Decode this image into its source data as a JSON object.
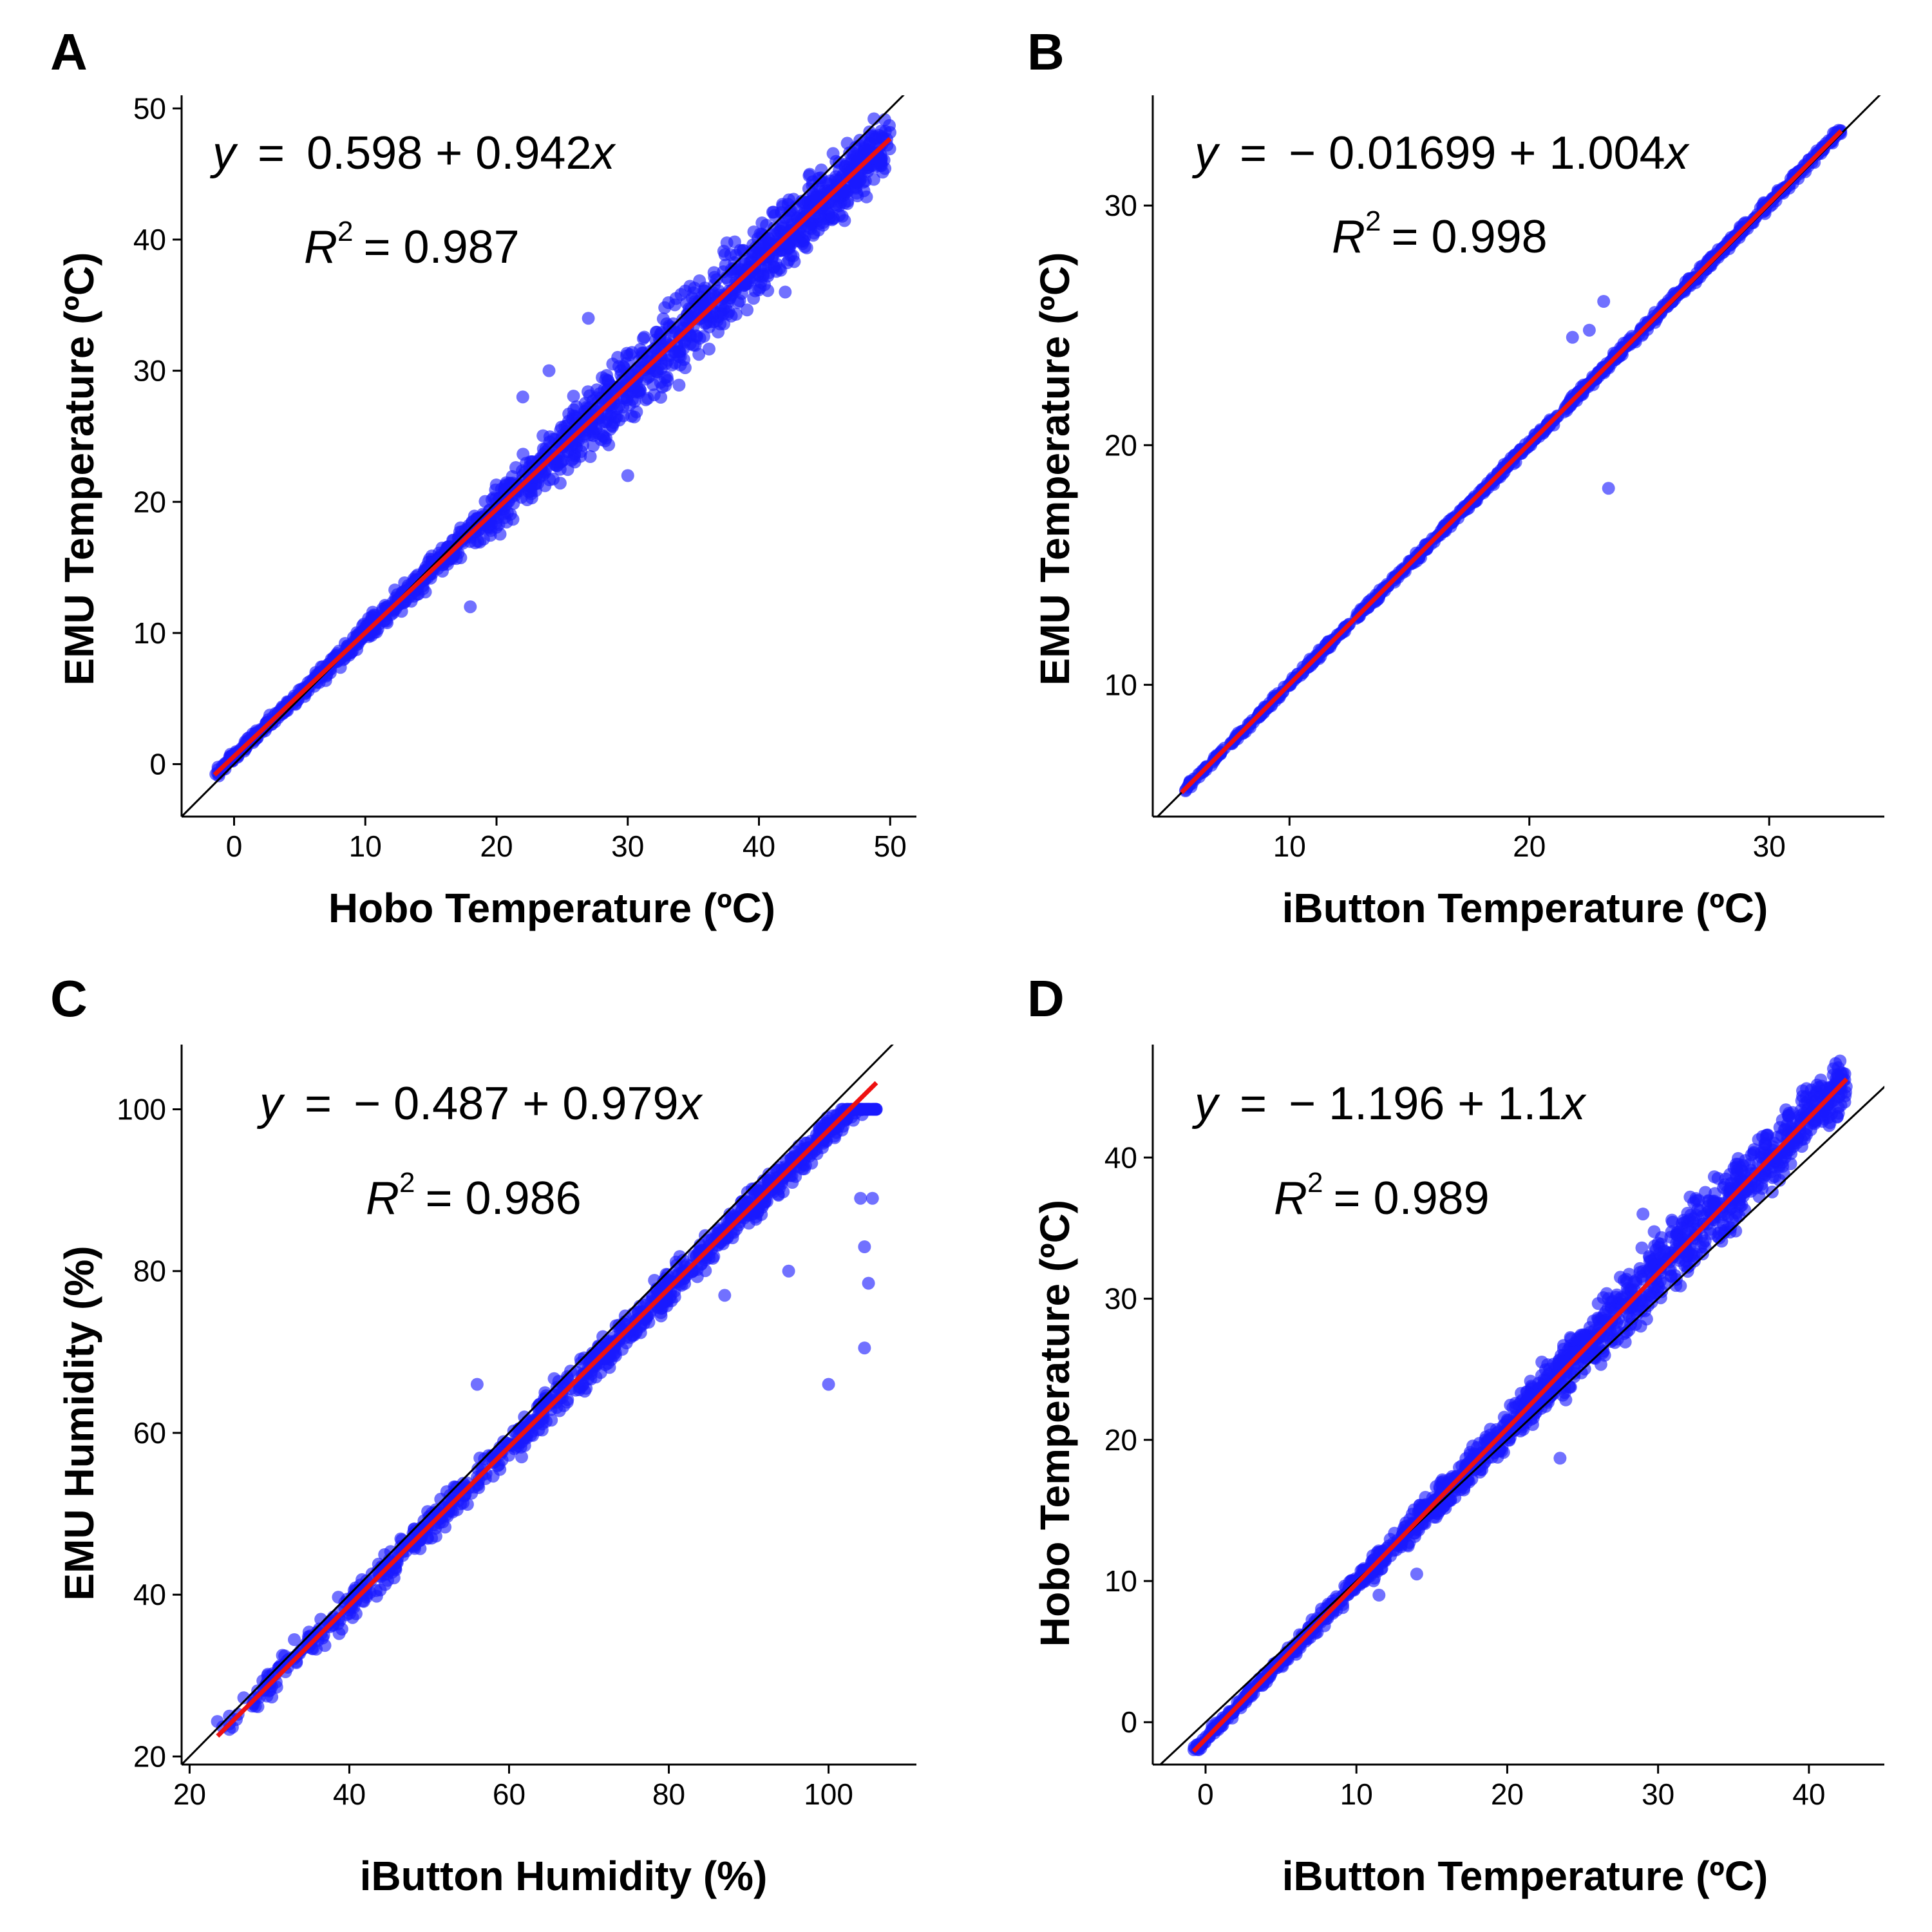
{
  "colors": {
    "points": "#1a1aff",
    "fit": "#ee1111",
    "identity": "#000000"
  },
  "chart_data": [
    {
      "type": "scatter",
      "panel": "A",
      "xlabel": "Hobo Temperature (ºC)",
      "ylabel": "EMU Temperature (ºC)",
      "xlim": [
        -4,
        52
      ],
      "ylim": [
        -4,
        51
      ],
      "xticks": [
        0,
        10,
        20,
        30,
        40,
        50
      ],
      "yticks": [
        0,
        10,
        20,
        30,
        40,
        50
      ],
      "equation": {
        "y": "y",
        "eq": "=",
        "rest": "0.598 + 0.942",
        "x": "x"
      },
      "r2": {
        "r": "R",
        "sup": "2",
        "rest": "= 0.987"
      },
      "fit": {
        "intercept": 0.598,
        "slope": 0.942,
        "x_range": [
          -1.5,
          50
        ]
      },
      "identity_line": true,
      "scatter": {
        "x_range": [
          -1.5,
          50
        ],
        "n_points": 1600,
        "spread_points": [
          [
            0,
            0.3
          ],
          [
            15,
            0.8
          ],
          [
            25,
            2.0
          ],
          [
            35,
            2.5
          ],
          [
            45,
            2.0
          ],
          [
            50,
            1.8
          ]
        ],
        "outliers": [
          [
            22,
            28
          ],
          [
            24,
            30
          ],
          [
            30,
            22
          ],
          [
            18,
            12
          ],
          [
            42,
            36
          ],
          [
            27,
            34
          ]
        ]
      }
    },
    {
      "type": "scatter",
      "panel": "B",
      "xlabel": "iButton Temperature (ºC)",
      "ylabel": "EMU Temperature (ºC)",
      "xlim": [
        4.3,
        34.8
      ],
      "ylim": [
        4.5,
        34.6
      ],
      "xticks": [
        10,
        20,
        30
      ],
      "yticks": [
        10,
        20,
        30
      ],
      "equation": {
        "y": "y",
        "eq": "=",
        "rest": "− 0.01699 + 1.004",
        "x": "x"
      },
      "r2": {
        "r": "R",
        "sup": "2",
        "rest": "= 0.998"
      },
      "fit": {
        "intercept": -0.01699,
        "slope": 1.004,
        "x_range": [
          5.5,
          33
        ]
      },
      "identity_line": true,
      "scatter": {
        "x_range": [
          5.5,
          33
        ],
        "n_points": 900,
        "spread_points": [
          [
            5,
            0.12
          ],
          [
            20,
            0.15
          ],
          [
            33,
            0.2
          ]
        ],
        "outliers": [
          [
            23.3,
            18.2
          ],
          [
            23.1,
            26
          ],
          [
            22.5,
            24.8
          ],
          [
            21.8,
            24.5
          ]
        ]
      }
    },
    {
      "type": "scatter",
      "panel": "C",
      "xlabel": "iButton Humidity (%)",
      "ylabel": "EMU Humidity (%)",
      "xlim": [
        19,
        111
      ],
      "ylim": [
        19,
        108
      ],
      "xticks": [
        20,
        40,
        60,
        80,
        100
      ],
      "yticks": [
        20,
        40,
        60,
        80,
        100
      ],
      "equation": {
        "y": "y",
        "eq": "=",
        "rest": "− 0.487 + 0.979",
        "x": "x"
      },
      "r2": {
        "r": "R",
        "sup": "2",
        "rest": "= 0.986"
      },
      "fit": {
        "intercept": -0.487,
        "slope": 0.979,
        "x_range": [
          23.5,
          106
        ]
      },
      "identity_line": true,
      "cap": 100,
      "scatter": {
        "x_range": [
          23,
          106
        ],
        "n_points": 1000,
        "spread_points": [
          [
            23,
            1.5
          ],
          [
            60,
            1.8
          ],
          [
            80,
            2.0
          ],
          [
            100,
            1.5
          ]
        ],
        "outliers": [
          [
            56,
            66
          ],
          [
            100,
            66
          ],
          [
            104.5,
            70.5
          ],
          [
            105,
            78.5
          ],
          [
            104.5,
            83
          ],
          [
            104,
            89
          ],
          [
            105.5,
            89
          ],
          [
            95,
            80
          ],
          [
            76,
            74
          ],
          [
            87,
            77
          ]
        ]
      }
    },
    {
      "type": "scatter",
      "panel": "D",
      "xlabel": "iButton Temperature (ºC)",
      "ylabel": "Hobo Temperature (ºC)",
      "xlim": [
        -3.5,
        45
      ],
      "ylim": [
        -3,
        48
      ],
      "xticks": [
        0,
        10,
        20,
        30,
        40
      ],
      "yticks": [
        0,
        10,
        20,
        30,
        40
      ],
      "equation": {
        "y": "y",
        "eq": "=",
        "rest": "− 1.196 + 1.1",
        "x": "x"
      },
      "r2": {
        "r": "R",
        "sup": "2",
        "rest": "= 0.989"
      },
      "fit": {
        "intercept": -1.196,
        "slope": 1.1,
        "x_range": [
          -0.8,
          42.5
        ]
      },
      "identity_line": true,
      "scatter": {
        "x_range": [
          -1,
          42.5
        ],
        "n_points": 1500,
        "spread_points": [
          [
            0,
            0.3
          ],
          [
            10,
            0.6
          ],
          [
            20,
            1.2
          ],
          [
            30,
            2.2
          ],
          [
            42,
            1.6
          ]
        ],
        "outliers": [
          [
            23.5,
            18.7
          ],
          [
            14,
            10.5
          ],
          [
            6,
            5
          ],
          [
            11.5,
            9
          ],
          [
            29,
            36
          ]
        ]
      }
    }
  ]
}
